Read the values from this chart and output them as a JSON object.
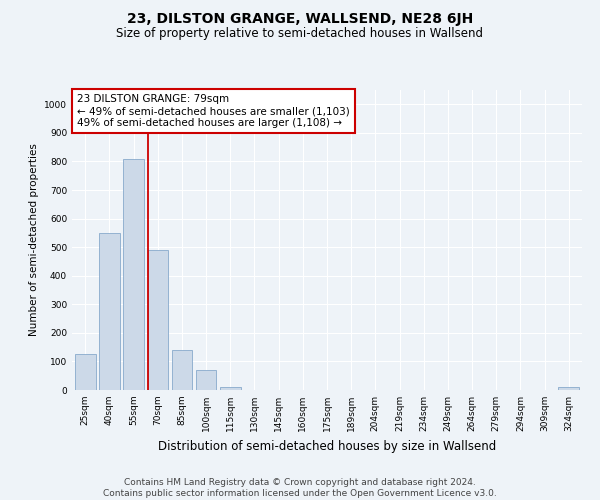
{
  "title": "23, DILSTON GRANGE, WALLSEND, NE28 6JH",
  "subtitle": "Size of property relative to semi-detached houses in Wallsend",
  "xlabel": "Distribution of semi-detached houses by size in Wallsend",
  "ylabel": "Number of semi-detached properties",
  "categories": [
    "25sqm",
    "40sqm",
    "55sqm",
    "70sqm",
    "85sqm",
    "100sqm",
    "115sqm",
    "130sqm",
    "145sqm",
    "160sqm",
    "175sqm",
    "189sqm",
    "204sqm",
    "219sqm",
    "234sqm",
    "249sqm",
    "264sqm",
    "279sqm",
    "294sqm",
    "309sqm",
    "324sqm"
  ],
  "bar_values": [
    125,
    550,
    810,
    490,
    140,
    70,
    10,
    0,
    0,
    0,
    0,
    0,
    0,
    0,
    0,
    0,
    0,
    0,
    0,
    0,
    10
  ],
  "bar_color": "#ccd9e8",
  "bar_edge_color": "#88aacc",
  "vline_x_index": 3,
  "vline_color": "#cc0000",
  "annotation_text": "23 DILSTON GRANGE: 79sqm\n← 49% of semi-detached houses are smaller (1,103)\n49% of semi-detached houses are larger (1,108) →",
  "annotation_box_color": "#ffffff",
  "annotation_box_edge": "#cc0000",
  "ylim": [
    0,
    1050
  ],
  "yticks": [
    0,
    100,
    200,
    300,
    400,
    500,
    600,
    700,
    800,
    900,
    1000
  ],
  "background_color": "#eef3f8",
  "grid_color": "#ffffff",
  "footer": "Contains HM Land Registry data © Crown copyright and database right 2024.\nContains public sector information licensed under the Open Government Licence v3.0.",
  "title_fontsize": 10,
  "subtitle_fontsize": 8.5,
  "xlabel_fontsize": 8.5,
  "ylabel_fontsize": 7.5,
  "tick_fontsize": 6.5,
  "annotation_fontsize": 7.5,
  "footer_fontsize": 6.5
}
